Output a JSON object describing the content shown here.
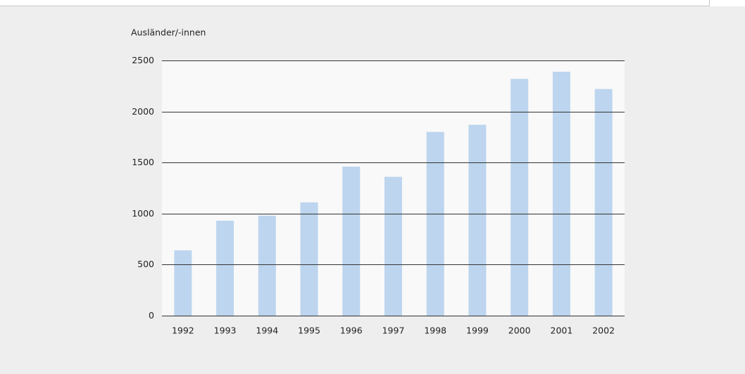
{
  "chart_data": {
    "type": "bar",
    "y_axis_label": "Ausländer/-innen",
    "categories": [
      "1992",
      "1993",
      "1994",
      "1995",
      "1996",
      "1997",
      "1998",
      "1999",
      "2000",
      "2001",
      "2002"
    ],
    "values": [
      640,
      930,
      980,
      1110,
      1460,
      1360,
      1800,
      1870,
      2320,
      2390,
      2220
    ],
    "color": "#bdd5ee",
    "ylim": [
      0,
      2500
    ],
    "yticks": [
      0,
      500,
      1000,
      1500,
      2000,
      2500
    ],
    "grid": true
  }
}
